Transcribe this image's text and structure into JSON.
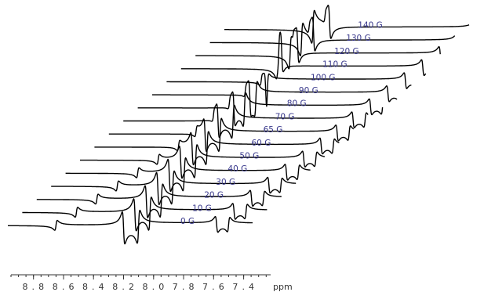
{
  "chart_data": {
    "type": "line",
    "xlabel": "ppm",
    "x_reversed": true,
    "xlim": [
      8.95,
      7.22
    ],
    "x_ticks": [
      "8.8",
      "8.6",
      "8.4",
      "8.2",
      "8.0",
      "7.8",
      "7.6",
      "7.4"
    ],
    "label_color": "#3a3a8c",
    "line_color": "#000000",
    "layout": "stacked diagonal offsets, lowest field at bottom-left",
    "series": [
      {
        "name": "0 G",
        "peaks_ppm": [
          8.65,
          8.2,
          8.1,
          7.58,
          7.5
        ]
      },
      {
        "name": "10 G",
        "peaks_ppm": [
          8.61,
          8.22,
          8.12,
          7.56,
          7.48
        ]
      },
      {
        "name": "20 G",
        "peaks_ppm": [
          8.57,
          8.24,
          8.14,
          7.54,
          7.46
        ]
      },
      {
        "name": "30 G",
        "peaks_ppm": [
          8.53,
          8.26,
          8.16,
          7.52,
          7.44
        ]
      },
      {
        "name": "40 G",
        "peaks_ppm": [
          8.49,
          8.28,
          8.18,
          7.5,
          7.42
        ]
      },
      {
        "name": "50 G",
        "peaks_ppm": [
          8.45,
          8.3,
          8.2,
          7.48,
          7.4
        ]
      },
      {
        "name": "60 G",
        "peaks_ppm": [
          8.41,
          8.32,
          8.22,
          7.46,
          7.38
        ]
      },
      {
        "name": "65 G",
        "peaks_ppm": [
          8.39,
          8.33,
          8.23,
          7.45,
          7.37
        ]
      },
      {
        "name": "70 G",
        "peaks_ppm": [
          8.37,
          8.34,
          8.24,
          7.44,
          7.36
        ]
      },
      {
        "name": "80 G",
        "peaks_ppm": [
          8.36,
          8.33,
          8.26,
          7.42,
          7.34
        ]
      },
      {
        "name": "90 G",
        "peaks_ppm": [
          8.35,
          8.32,
          8.28,
          7.4,
          7.32
        ]
      },
      {
        "name": "100 G",
        "peaks_ppm": [
          8.34,
          8.31,
          8.3,
          7.38,
          7.3
        ]
      },
      {
        "name": "110 G",
        "peaks_ppm": [
          8.33,
          8.3,
          8.32,
          7.36,
          7.28
        ]
      },
      {
        "name": "120 G",
        "peaks_ppm": [
          8.32,
          8.29,
          8.34,
          7.34,
          7.26
        ]
      },
      {
        "name": "130 G",
        "peaks_ppm": [
          8.31,
          8.28,
          8.36,
          7.32,
          7.24
        ]
      },
      {
        "name": "140 G",
        "peaks_ppm": [
          8.3,
          8.27,
          8.38,
          7.3,
          7.22
        ]
      }
    ]
  }
}
